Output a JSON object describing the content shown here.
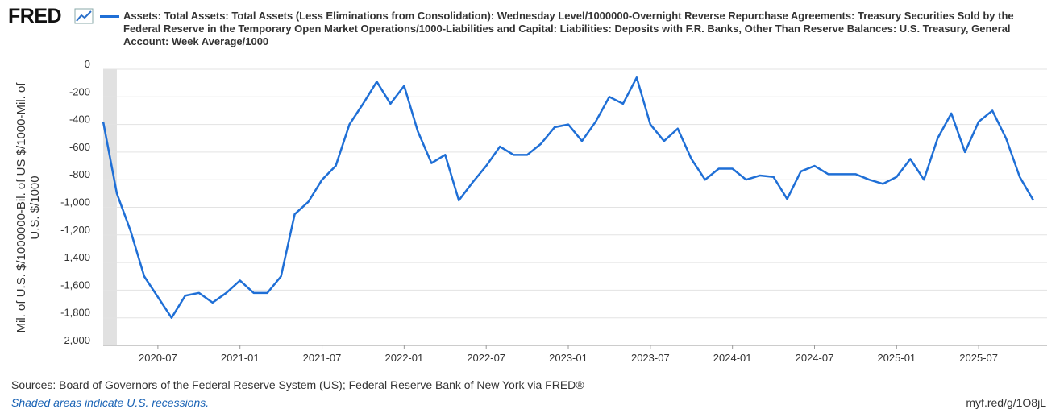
{
  "logo": "FRED",
  "chart_data": {
    "type": "line",
    "title": "Assets: Total Assets: Total Assets (Less Eliminations from Consolidation): Wednesday Level/1000000-Overnight Reverse Repurchase Agreements: Treasury Securities Sold by the Federal Reserve in the Temporary Open Market Operations/1000-Liabilities and Capital: Liabilities: Deposits with F.R. Banks, Other Than Reserve Balances: U.S. Treasury, General Account: Week Average/1000",
    "y_label": [
      "Mil. of U.S. $/1000000-Bil. of US $/1000-Mil. of",
      "U.S. $/1000"
    ],
    "x": [
      "2020-03",
      "2020-04",
      "2020-05",
      "2020-06",
      "2020-07",
      "2020-08",
      "2020-09",
      "2020-10",
      "2020-11",
      "2020-12",
      "2021-01",
      "2021-02",
      "2021-03",
      "2021-04",
      "2021-05",
      "2021-06",
      "2021-07",
      "2021-08",
      "2021-09",
      "2021-10",
      "2021-11",
      "2021-12",
      "2022-01",
      "2022-02",
      "2022-03",
      "2022-04",
      "2022-05",
      "2022-06",
      "2022-07",
      "2022-08",
      "2022-09",
      "2022-10",
      "2022-11",
      "2022-12",
      "2023-01",
      "2023-02",
      "2023-03",
      "2023-04",
      "2023-05",
      "2023-06",
      "2023-07",
      "2023-08",
      "2023-09",
      "2023-10",
      "2023-11",
      "2023-12",
      "2024-01",
      "2024-02",
      "2024-03",
      "2024-04",
      "2024-05",
      "2024-06",
      "2024-07",
      "2024-08",
      "2024-09",
      "2024-10",
      "2024-11",
      "2024-12",
      "2025-01",
      "2025-02",
      "2025-03",
      "2025-04",
      "2025-05",
      "2025-06",
      "2025-07",
      "2025-08",
      "2025-09",
      "2025-10",
      "2025-11"
    ],
    "series": [
      {
        "name": "Assets: Total Assets: Total Assets (Less Eliminations from Consolidation): Wednesday Level/1000000-Overnight Reverse Repurchase Agreements: Treasury Securities Sold by the Federal Reserve in the Temporary Open Market Operations/1000-Liabilities and Capital: Liabilities: Deposits with F.R. Banks, Other Than Reserve Balances: U.S. Treasury, General Account: Week Average/1000",
        "color": "#1f6fd6",
        "values": [
          -380,
          -900,
          -1170,
          -1500,
          -1650,
          -1800,
          -1640,
          -1620,
          -1690,
          -1620,
          -1530,
          -1620,
          -1620,
          -1500,
          -1050,
          -960,
          -800,
          -700,
          -400,
          -250,
          -90,
          -250,
          -120,
          -450,
          -680,
          -620,
          -950,
          -820,
          -700,
          -560,
          -620,
          -620,
          -540,
          -420,
          -400,
          -520,
          -380,
          -200,
          -250,
          -60,
          -400,
          -520,
          -430,
          -650,
          -800,
          -720,
          -720,
          -800,
          -770,
          -780,
          -940,
          -740,
          -700,
          -760,
          -760,
          -760,
          -800,
          -830,
          -780,
          -650,
          -800,
          -500,
          -320,
          -600,
          -380,
          -300,
          -500,
          -780,
          -950
        ]
      }
    ],
    "xlim": [
      "2020-03",
      "2025-12"
    ],
    "xticks": [
      "2020-07",
      "2021-01",
      "2021-07",
      "2022-01",
      "2022-07",
      "2023-01",
      "2023-07",
      "2024-01",
      "2024-07",
      "2025-01",
      "2025-07"
    ],
    "ylim": [
      -2000,
      0
    ],
    "yticks": [
      0,
      -200,
      -400,
      -600,
      -800,
      {
        "value": -1000,
        "label": "-1,000"
      },
      {
        "value": -1200,
        "label": "-1,200"
      },
      {
        "value": -1400,
        "label": "-1,400"
      },
      {
        "value": -1600,
        "label": "-1,600"
      },
      {
        "value": -1800,
        "label": "-1,800"
      },
      {
        "value": -2000,
        "label": "-2,000"
      }
    ],
    "grid": true,
    "recession": [
      "2020-03",
      "2020-04"
    ]
  },
  "footer": {
    "sources": "Sources: Board of Governors of the Federal Reserve System (US); Federal Reserve Bank of New York via FRED®",
    "note": "Shaded areas indicate U.S. recessions.",
    "link": "myf.red/g/1O8jL"
  }
}
